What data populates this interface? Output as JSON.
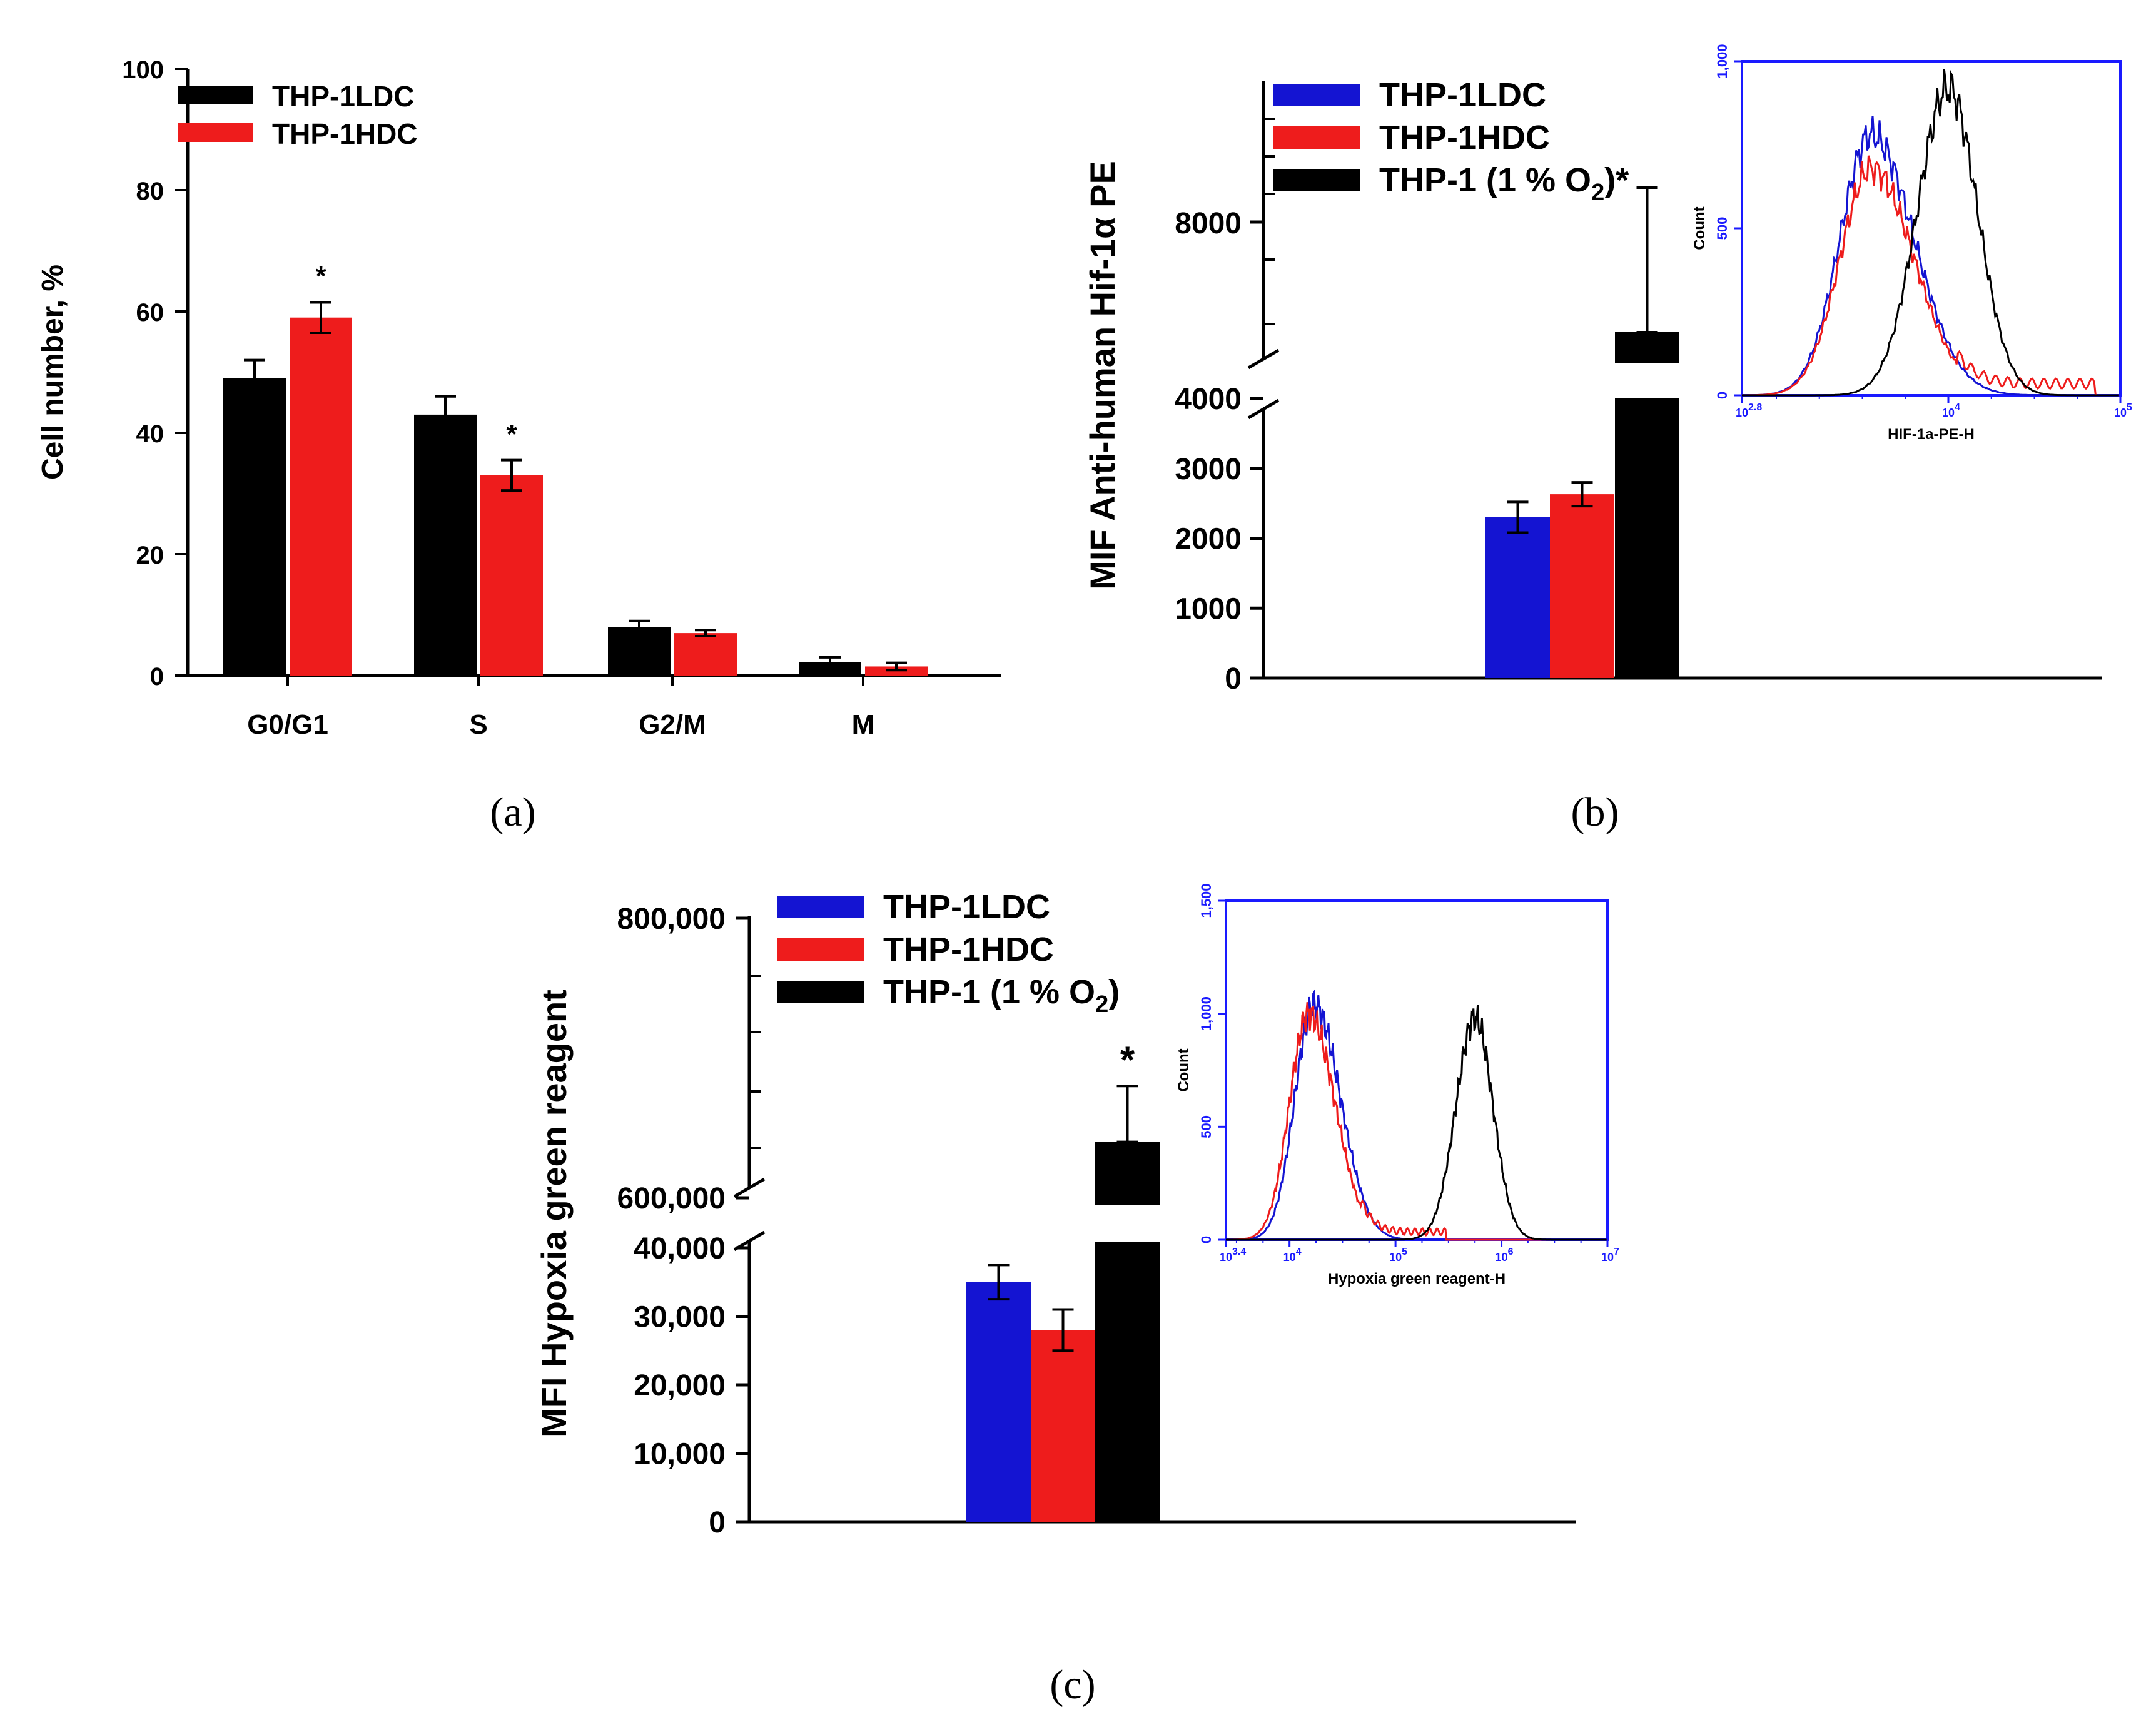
{
  "colors": {
    "black": "#000000",
    "red": "#ee1c1c",
    "blue": "#1414d2",
    "frame": "#1a1aff"
  },
  "chart_data": [
    {
      "id": "a",
      "type": "bar",
      "caption": "(a)",
      "ylabel": "Cell number, %",
      "ylim": [
        0,
        100
      ],
      "yticks": [
        "0",
        "20",
        "40",
        "60",
        "80",
        "100"
      ],
      "categories": [
        "G0/G1",
        "S",
        "G2/M",
        "M"
      ],
      "series": [
        {
          "name": "THP-1LDC",
          "color": "#000000",
          "values": [
            49,
            43,
            8,
            2.2
          ],
          "errors": [
            3,
            3,
            1,
            0.8
          ]
        },
        {
          "name": "THP-1HDC",
          "color": "#ee1c1c",
          "values": [
            59,
            33,
            7,
            1.5
          ],
          "errors": [
            2.5,
            2.5,
            0.5,
            0.6
          ]
        }
      ],
      "annotations": [
        {
          "text": "*",
          "category": "G0/G1"
        },
        {
          "text": "*",
          "category": "S"
        }
      ]
    },
    {
      "id": "b",
      "type": "bar",
      "caption": "(b)",
      "ylabel": "MIF Anti-human Hif-1α PE",
      "yticks_lower": [
        "0",
        "1000",
        "2000",
        "3000",
        "4000"
      ],
      "ytick_upper": "8000",
      "series": [
        {
          "name": "THP-1LDC",
          "color": "#1414d2",
          "value": 2300,
          "error": 220
        },
        {
          "name": "THP-1HDC",
          "color": "#ee1c1c",
          "value": 2630,
          "error": 170
        },
        {
          "name": "THP-1 (1 % O",
          "sub": "2",
          "suffix": ")",
          "color": "#000000",
          "value": 7200,
          "error": 1050,
          "star": "*"
        }
      ],
      "inset": {
        "type": "line",
        "xlabel": "HIF-1a-PE-H",
        "ylabel": "Count",
        "yticks": [
          "0",
          "500",
          "1,000"
        ],
        "xticks": [
          "10^2.8",
          "10^4",
          "10^5"
        ],
        "xtick_base": "10",
        "xtick_exps": [
          "2.8",
          "4",
          "5"
        ],
        "curves": [
          {
            "name": "THP-1LDC",
            "color": "#1414d2",
            "peak_log": 3.55,
            "peak_count": 780
          },
          {
            "name": "THP-1HDC",
            "color": "#ee1c1c",
            "peak_log": 3.55,
            "peak_count": 680
          },
          {
            "name": "THP-1 (1 % O2)",
            "color": "#000000",
            "peak_log": 4.0,
            "peak_count": 920
          }
        ]
      }
    },
    {
      "id": "c",
      "type": "bar",
      "caption": "(c)",
      "ylabel": "MFI Hypoxia green reagent",
      "yticks_lower": [
        "0",
        "10,000",
        "20,000",
        "30,000",
        "40,000"
      ],
      "yticks_upper": [
        "600,000",
        "800,000"
      ],
      "series": [
        {
          "name": "THP-1LDC",
          "color": "#1414d2",
          "value": 35000,
          "error": 2500
        },
        {
          "name": "THP-1HDC",
          "color": "#ee1c1c",
          "value": 28000,
          "error": 3000
        },
        {
          "name": "THP-1 (1 % O",
          "sub": "2",
          "suffix": ")",
          "color": "#000000",
          "value": 640000,
          "error": 40000,
          "star": "*"
        }
      ],
      "inset": {
        "type": "line",
        "xlabel": "Hypoxia green reagent-H",
        "ylabel": "Count",
        "yticks": [
          "0",
          "500",
          "1,000",
          "1,500"
        ],
        "xticks": [
          "10^3.4",
          "10^4",
          "10^5",
          "10^6",
          "10^7"
        ],
        "xtick_base": "10",
        "xtick_exps": [
          "3.4",
          "4",
          "5",
          "6",
          "7"
        ],
        "curves": [
          {
            "name": "THP-1LDC",
            "color": "#1414d2",
            "peak_log": 4.23,
            "peak_count": 1040
          },
          {
            "name": "THP-1HDC",
            "color": "#ee1c1c",
            "peak_log": 4.18,
            "peak_count": 1000
          },
          {
            "name": "THP-1 (1 % O2)",
            "color": "#000000",
            "peak_log": 5.75,
            "peak_count": 980
          }
        ]
      }
    }
  ]
}
